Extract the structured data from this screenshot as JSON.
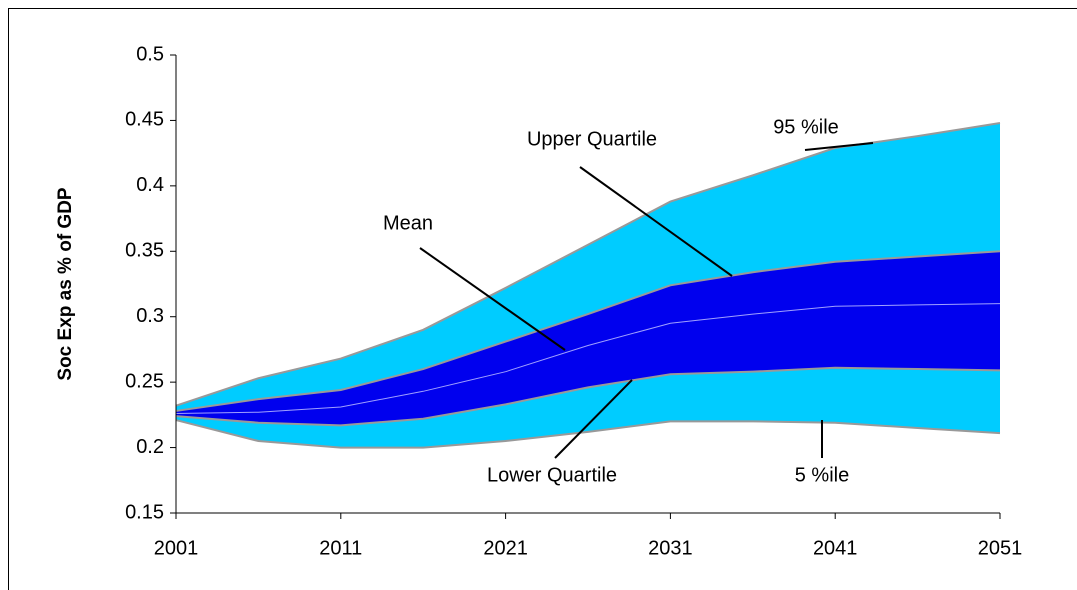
{
  "chart_data": {
    "type": "fan",
    "y_label": "Soc Exp as % of GDP",
    "x": [
      2001,
      2006,
      2011,
      2016,
      2021,
      2026,
      2031,
      2036,
      2041,
      2046,
      2051
    ],
    "series": [
      {
        "name": "95 %ile",
        "color": "#00ccff",
        "values": [
          0.232,
          0.253,
          0.268,
          0.29,
          0.322,
          0.355,
          0.388,
          0.408,
          0.429,
          0.438,
          0.448
        ]
      },
      {
        "name": "Upper Quartile",
        "color": "#0000ee",
        "values": [
          0.228,
          0.237,
          0.244,
          0.26,
          0.281,
          0.302,
          0.324,
          0.334,
          0.342,
          0.346,
          0.35
        ]
      },
      {
        "name": "Mean",
        "color": "#a0a0ff",
        "values": [
          0.226,
          0.227,
          0.231,
          0.243,
          0.258,
          0.278,
          0.295,
          0.302,
          0.308,
          0.309,
          0.31
        ]
      },
      {
        "name": "Lower Quartile",
        "color": "#0000ee",
        "values": [
          0.224,
          0.219,
          0.217,
          0.222,
          0.233,
          0.246,
          0.256,
          0.258,
          0.261,
          0.26,
          0.259
        ]
      },
      {
        "name": "5 %ile",
        "color": "#00ccff",
        "values": [
          0.221,
          0.205,
          0.2,
          0.2,
          0.205,
          0.212,
          0.22,
          0.22,
          0.219,
          0.215,
          0.211
        ]
      }
    ],
    "xlim": [
      2001,
      2051
    ],
    "xticks": [
      2001,
      2011,
      2021,
      2031,
      2041,
      2051
    ],
    "ylim": [
      0.15,
      0.5
    ],
    "yticks": [
      0.15,
      0.2,
      0.25,
      0.3,
      0.35,
      0.4,
      0.45,
      0.5
    ]
  }
}
